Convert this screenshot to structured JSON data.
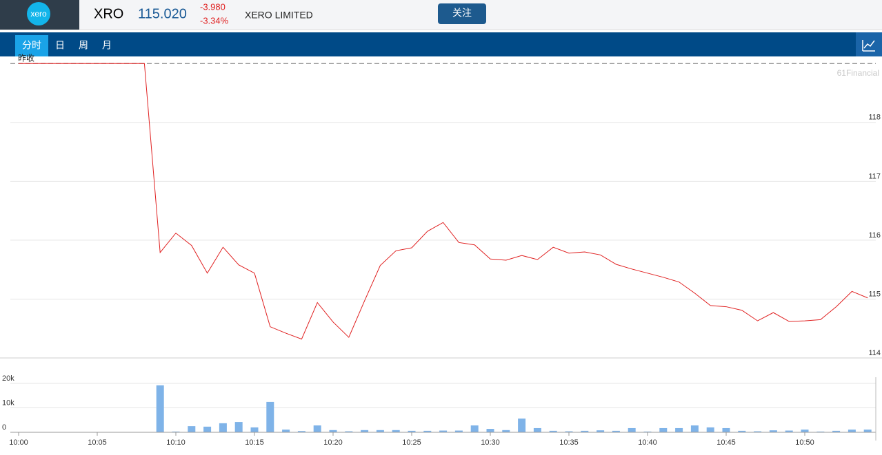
{
  "header": {
    "logo": "xero",
    "ticker": "XRO",
    "price": "115.020",
    "change": "-3.980",
    "change_pct": "-3.34%",
    "name": "XERO LIMITED",
    "follow_button": "关注"
  },
  "tabs": [
    "分时",
    "日",
    "周",
    "月"
  ],
  "watermark": "61Financial",
  "chart_data": [
    {
      "type": "line",
      "color": "#e02020",
      "ylim": [
        114,
        119.12
      ],
      "yticks": [
        114,
        115,
        116,
        117,
        118
      ],
      "grid": true,
      "reference_line": {
        "label": "昨收",
        "value": 119
      },
      "values": [
        119,
        119,
        119,
        119,
        119,
        119,
        119,
        119,
        119,
        115.79,
        116.12,
        115.91,
        115.44,
        115.88,
        115.58,
        115.44,
        114.53,
        114.42,
        114.32,
        114.94,
        114.61,
        114.35,
        114.97,
        115.57,
        115.82,
        115.87,
        116.15,
        116.3,
        115.96,
        115.92,
        115.68,
        115.66,
        115.74,
        115.67,
        115.88,
        115.78,
        115.8,
        115.75,
        115.59,
        115.51,
        115.44,
        115.37,
        115.29,
        115.1,
        114.89,
        114.87,
        114.81,
        114.63,
        114.77,
        114.62,
        114.63,
        114.65,
        114.87,
        115.13,
        115.02
      ]
    },
    {
      "type": "bar",
      "color": "#7fb3e8",
      "ylim": [
        0,
        22500
      ],
      "yticks": [
        0,
        {
          "value": 10000,
          "label": "10k"
        },
        {
          "value": 20000,
          "label": "20k"
        }
      ],
      "grid": true,
      "categories": [
        "10:00",
        null,
        null,
        null,
        null,
        "10:05",
        null,
        null,
        null,
        null,
        "10:10",
        null,
        null,
        null,
        null,
        "10:15",
        null,
        null,
        null,
        null,
        "10:20",
        null,
        null,
        null,
        null,
        "10:25",
        null,
        null,
        null,
        null,
        "10:30",
        null,
        null,
        null,
        null,
        "10:35",
        null,
        null,
        null,
        null,
        "10:40",
        null,
        null,
        null,
        null,
        "10:45",
        null,
        null,
        null,
        null,
        "10:50",
        null,
        null,
        null,
        null
      ],
      "values": [
        null,
        null,
        null,
        null,
        null,
        null,
        null,
        null,
        null,
        19200,
        300,
        2500,
        2300,
        3700,
        4200,
        2000,
        12400,
        1100,
        500,
        2800,
        900,
        400,
        900,
        900,
        900,
        600,
        600,
        700,
        700,
        2800,
        1400,
        900,
        5600,
        1700,
        600,
        400,
        600,
        800,
        600,
        1700,
        300,
        1700,
        1700,
        2800,
        2000,
        1700,
        600,
        400,
        800,
        700,
        1100,
        300,
        600,
        1100,
        1100
      ]
    }
  ]
}
